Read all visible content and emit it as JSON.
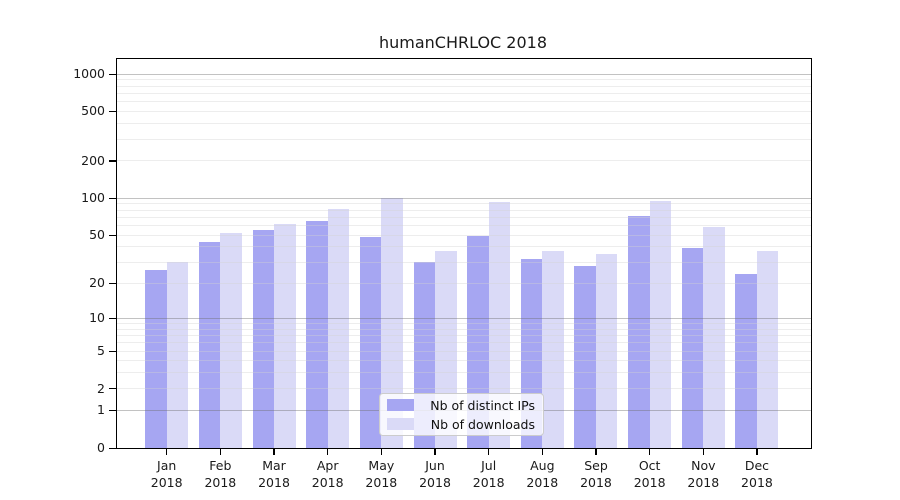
{
  "title": "humanCHRLOC 2018",
  "colors": {
    "distinct_ips_bar": "#a6a6f2",
    "downloads_bar": "#dadaf7",
    "axis": "#000000",
    "grid_major": "#c2c2c2",
    "grid_minor": "#ededed",
    "background": "#ffffff"
  },
  "legend": {
    "items": [
      {
        "label": "Nb of distinct IPs",
        "color": "#a6a6f2"
      },
      {
        "label": "Nb of downloads",
        "color": "#dadaf7"
      }
    ]
  },
  "axis": {
    "y_tick_labels": [
      "0",
      "1",
      "2",
      "5",
      "10",
      "20",
      "50",
      "100",
      "200",
      "500",
      "1000"
    ],
    "x_months": [
      "Jan",
      "Feb",
      "Mar",
      "Apr",
      "May",
      "Jun",
      "Jul",
      "Aug",
      "Sep",
      "Oct",
      "Nov",
      "Dec"
    ],
    "x_year": "2018"
  },
  "chart_data": {
    "type": "bar",
    "title": "humanCHRLOC 2018",
    "xlabel": "",
    "ylabel": "",
    "scale": "log1p (y position proportional to log10(1+value), 0 at baseline)",
    "categories": [
      "Jan 2018",
      "Feb 2018",
      "Mar 2018",
      "Apr 2018",
      "May 2018",
      "Jun 2018",
      "Jul 2018",
      "Aug 2018",
      "Sep 2018",
      "Oct 2018",
      "Nov 2018",
      "Dec 2018"
    ],
    "series": [
      {
        "name": "Nb of distinct IPs",
        "color": "#a6a6f2",
        "values": [
          26,
          44,
          55,
          65,
          48,
          30,
          49,
          32,
          28,
          72,
          39,
          24
        ]
      },
      {
        "name": "Nb of downloads",
        "color": "#dadaf7",
        "values": [
          30,
          52,
          62,
          81,
          100,
          37,
          93,
          37,
          35,
          95,
          58,
          37
        ]
      }
    ],
    "y_ticks": [
      0,
      1,
      2,
      5,
      10,
      20,
      50,
      100,
      200,
      500,
      1000
    ],
    "ylim": [
      0,
      1270
    ],
    "grid": "horizontal only; major gray lines at 1, 10, 100, 1000; faint minor lines at 2-9 per decade; grid drawn over bars",
    "legend_position": "inside plot, lower center"
  }
}
